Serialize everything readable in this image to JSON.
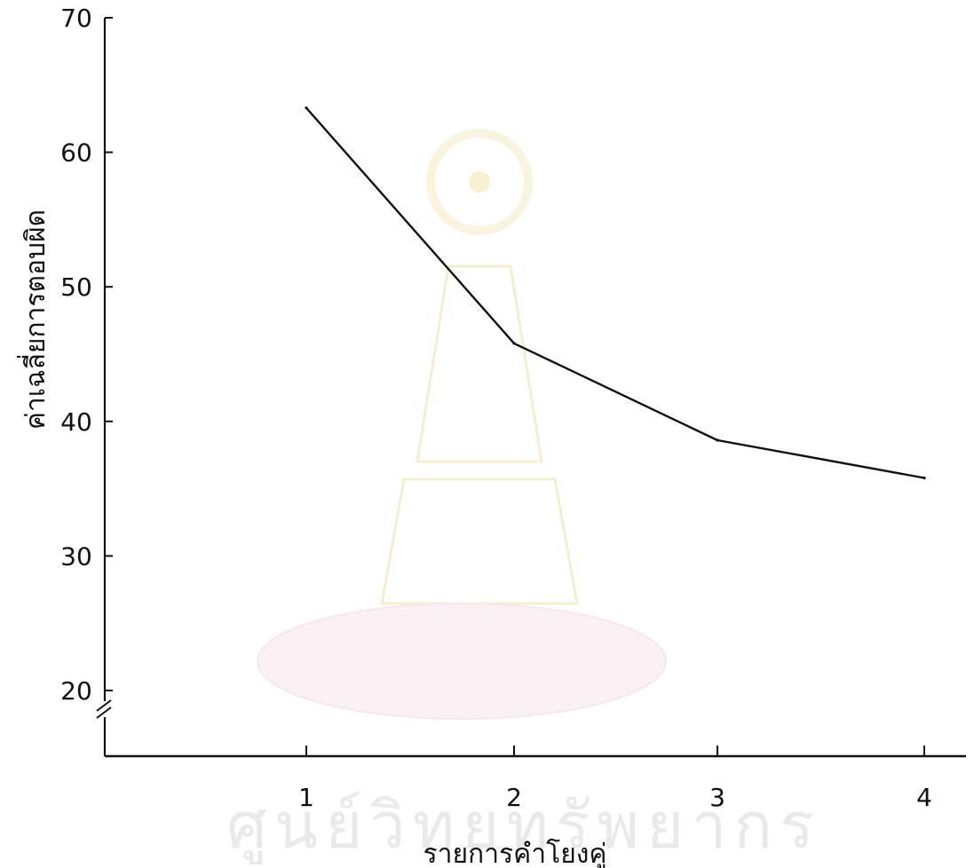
{
  "chart_data": {
    "type": "line",
    "xlabel": "รายการคำโยงคู่",
    "ylabel": "ค่าเฉลี่ยการตอบผิด",
    "x": [
      1,
      2,
      3,
      4
    ],
    "x_tick_labels": [
      "1",
      "2",
      "3",
      "4"
    ],
    "y_tick_labels": [
      "70",
      "60",
      "50",
      "40",
      "30",
      "20"
    ],
    "y_ticks": [
      70,
      60,
      50,
      40,
      30,
      20
    ],
    "ylim": [
      20,
      70
    ],
    "y_axis_break": true,
    "series": [
      {
        "values": [
          63.3,
          45.8,
          38.6,
          35.8
        ]
      }
    ],
    "grid": false,
    "legend": "none",
    "colors": {
      "line": "#111111",
      "axis": "#111111",
      "background": "#ffffff"
    }
  },
  "watermark": {
    "text": "ศูนย์วิทยทรัพยากร",
    "description": "university seal watermark"
  }
}
